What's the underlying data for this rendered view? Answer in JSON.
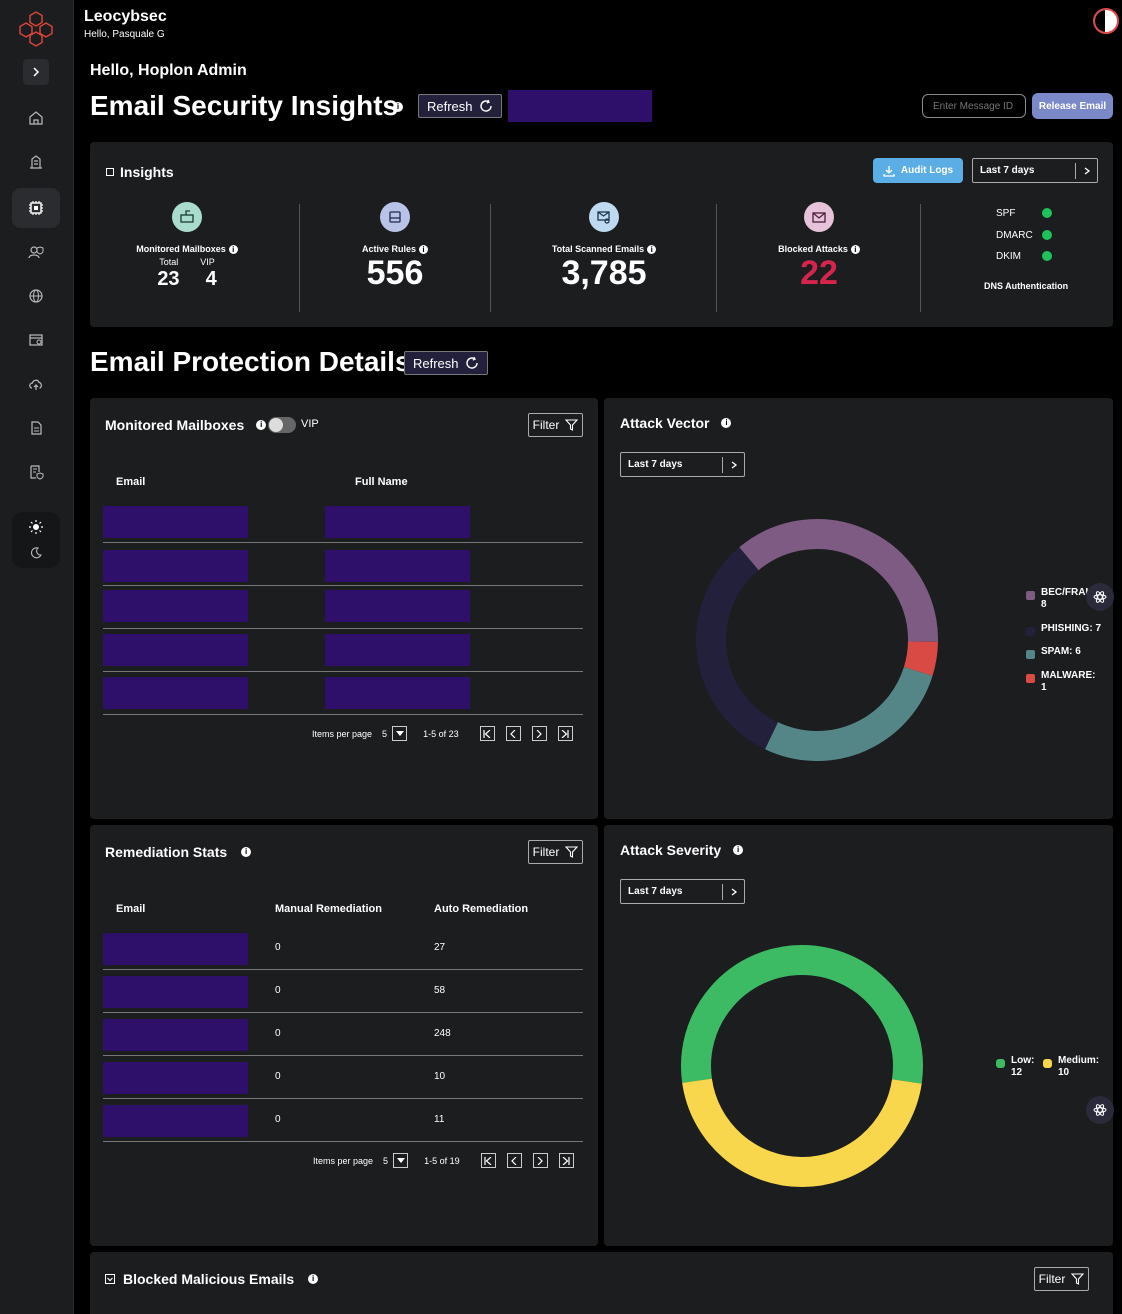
{
  "brand": {
    "name": "Leocybsec",
    "hello": "Hello, Pasquale G"
  },
  "header": {
    "greeting": "Hello, Hoplon Admin",
    "title": "Email Security Insights",
    "refresh_label": "Refresh",
    "message_placeholder": "Enter Message ID",
    "release_label": "Release Email"
  },
  "insights": {
    "title": "Insights",
    "audit_label": "Audit Logs",
    "period": "Last 7 days",
    "monitored": {
      "label": "Monitored Mailboxes",
      "total_label": "Total",
      "vip_label": "VIP",
      "total": "23",
      "vip": "4"
    },
    "active_rules": {
      "label": "Active Rules",
      "value": "556"
    },
    "scanned": {
      "label": "Total Scanned Emails",
      "value": "3,785"
    },
    "blocked": {
      "label": "Blocked Attacks",
      "value": "22"
    },
    "dns": {
      "title": "DNS Authentication",
      "items": [
        "SPF",
        "DMARC",
        "DKIM"
      ]
    }
  },
  "protection": {
    "title": "Email Protection Details",
    "refresh_label": "Refresh"
  },
  "mailboxes": {
    "title": "Monitored Mailboxes",
    "vip_label": "VIP",
    "filter_label": "Filter",
    "col_email": "Email",
    "col_name": "Full Name",
    "items_per_page_label": "Items per page",
    "per_page": "5",
    "range": "1-5 of 23"
  },
  "attack_vector": {
    "title": "Attack Vector",
    "period": "Last 7 days"
  },
  "remediation": {
    "title": "Remediation Stats",
    "filter_label": "Filter",
    "col_email": "Email",
    "col_manual": "Manual Remediation",
    "col_auto": "Auto Remediation",
    "rows": [
      {
        "manual": "0",
        "auto": "27"
      },
      {
        "manual": "0",
        "auto": "58"
      },
      {
        "manual": "0",
        "auto": "248"
      },
      {
        "manual": "0",
        "auto": "10"
      },
      {
        "manual": "0",
        "auto": "11"
      }
    ],
    "items_per_page_label": "Items per page",
    "per_page": "5",
    "range": "1-5 of 19"
  },
  "attack_severity": {
    "title": "Attack Severity",
    "period": "Last 7 days"
  },
  "blocked_emails": {
    "title": "Blocked Malicious Emails",
    "filter_label": "Filter"
  },
  "chart_data": [
    {
      "type": "pie",
      "title": "Attack Vector",
      "categories": [
        "BEC/FRAUD",
        "PHISHING",
        "SPAM",
        "MALWARE"
      ],
      "values": [
        8,
        7,
        6,
        1
      ],
      "colors": [
        "#7d5b83",
        "#22203a",
        "#548687",
        "#d84a43"
      ],
      "legend_text": [
        "BEC/FRAU 8",
        "PHISHING: 7",
        "SPAM: 6",
        "MALWARE: 1"
      ]
    },
    {
      "type": "pie",
      "title": "Attack Severity",
      "categories": [
        "Low",
        "Medium"
      ],
      "values": [
        12,
        10
      ],
      "colors": [
        "#3dbb64",
        "#f9d74c"
      ],
      "legend_text": [
        "Low: 12",
        "Medium: 10"
      ]
    }
  ]
}
